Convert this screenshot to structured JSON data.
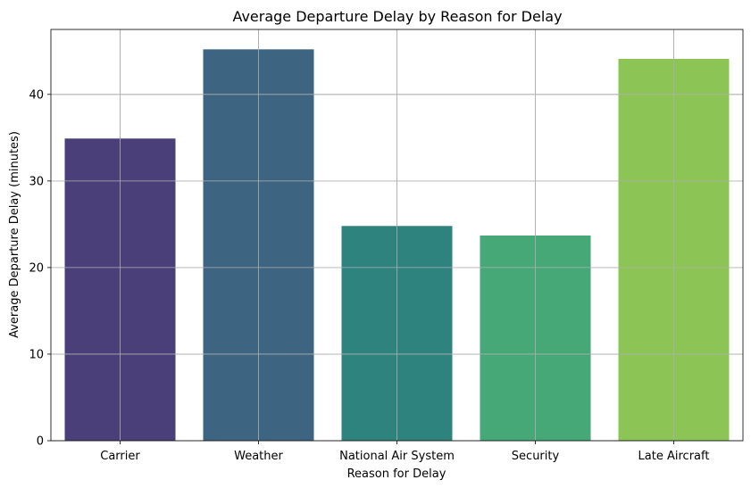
{
  "chart_data": {
    "type": "bar",
    "title": "Average Departure Delay by Reason for Delay",
    "xlabel": "Reason for Delay",
    "ylabel": "Average Departure Delay (minutes)",
    "categories": [
      "Carrier",
      "Weather",
      "National Air System",
      "Security",
      "Late Aircraft"
    ],
    "values": [
      34.9,
      45.2,
      24.8,
      23.7,
      44.1
    ],
    "colors": [
      "#4a3f79",
      "#3d6481",
      "#2e837e",
      "#46a877",
      "#8cc456"
    ],
    "ylim": [
      0,
      47.5
    ],
    "yticks": [
      0,
      10,
      20,
      30,
      40
    ],
    "grid": true,
    "legend": "none"
  }
}
